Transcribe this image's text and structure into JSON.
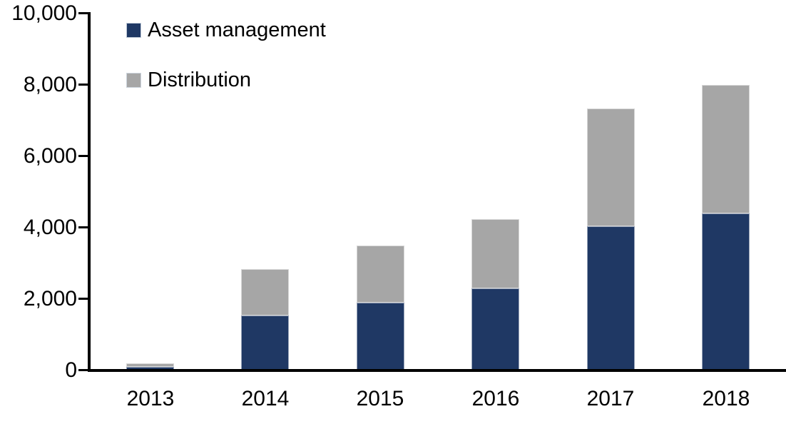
{
  "chart_data": {
    "type": "bar",
    "stacked": true,
    "title": "",
    "xlabel": "",
    "ylabel": "",
    "categories": [
      "2013",
      "2014",
      "2015",
      "2016",
      "2017",
      "2018"
    ],
    "series": [
      {
        "name": "Asset management",
        "color": "#1F3864",
        "values": [
          100,
          1550,
          1900,
          2300,
          4050,
          4400
        ]
      },
      {
        "name": "Distribution",
        "color": "#A6A6A6",
        "values": [
          100,
          1300,
          1600,
          1950,
          3300,
          3600
        ]
      }
    ],
    "ylim": [
      0,
      10000
    ],
    "ytick_interval": 2000,
    "ytick_labels": [
      "0",
      "2,000",
      "4,000",
      "6,000",
      "8,000",
      "10,000"
    ],
    "grid": false,
    "legend_position": "top-left",
    "axis_color": "#000000",
    "text_color": "#000000",
    "background_color": "#FFFFFF"
  }
}
